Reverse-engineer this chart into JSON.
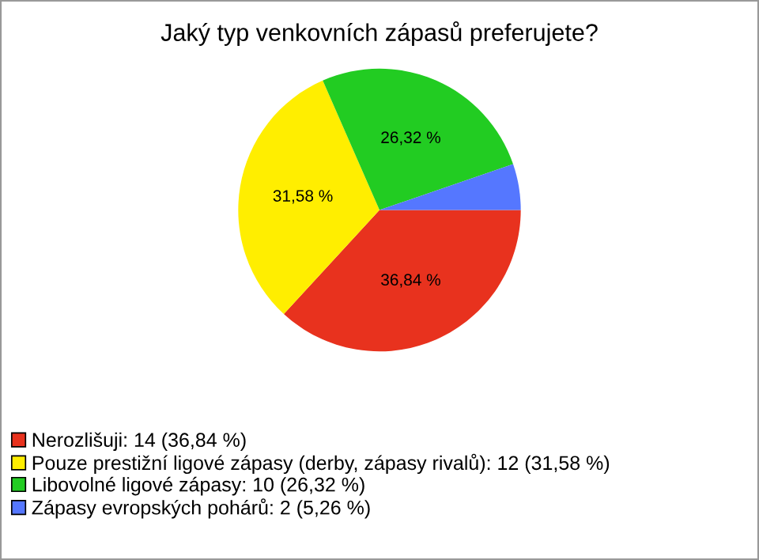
{
  "chart_data": {
    "type": "pie",
    "title": "Jaký typ venkovních zápasů preferujete?",
    "categories": [
      "Nerozlišuji: 14 (36,84 %)",
      "Pouze prestižní ligové zápasy (derby, zápasy rivalů): 12 (31,58 %)",
      "Libovolné ligové zápasy: 10 (26,32 %)",
      "Zápasy evropských pohárů: 2 (5,26 %)"
    ],
    "values": [
      36.84,
      31.58,
      26.32,
      5.26
    ],
    "value_labels": [
      "36,84 %",
      "31,58 %",
      "26,32 %",
      null
    ],
    "colors": [
      "#e8321e",
      "#ffee00",
      "#22cc22",
      "#5577ff"
    ],
    "legend": "bottom left"
  }
}
